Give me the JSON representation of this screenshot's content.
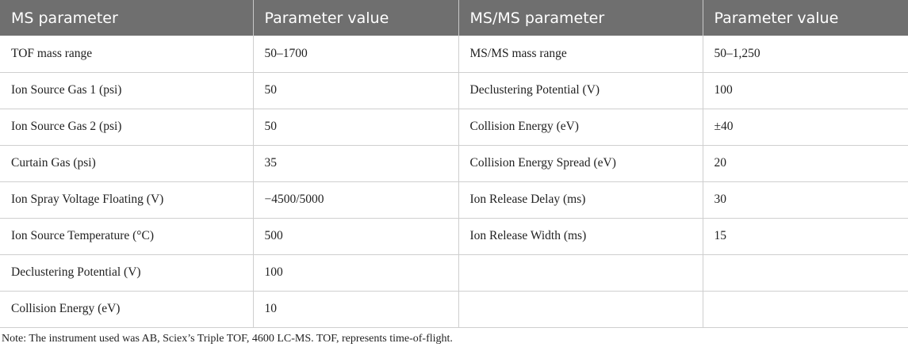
{
  "table": {
    "headers": [
      "MS parameter",
      "Parameter value",
      "MS/MS parameter",
      "Parameter value"
    ],
    "rows": [
      [
        "TOF mass range",
        "50–1700",
        "MS/MS mass range",
        "50–1,250"
      ],
      [
        "Ion Source Gas 1 (psi)",
        "50",
        "Declustering Potential (V)",
        "100"
      ],
      [
        "Ion Source Gas 2 (psi)",
        "50",
        "Collision Energy (eV)",
        "±40"
      ],
      [
        "Curtain Gas (psi)",
        "35",
        "Collision Energy Spread (eV)",
        "20"
      ],
      [
        "Ion Spray Voltage Floating (V)",
        "−4500/5000",
        "Ion Release Delay (ms)",
        "30"
      ],
      [
        "Ion Source Temperature (°C)",
        "500",
        "Ion Release Width (ms)",
        "15"
      ],
      [
        "Declustering Potential (V)",
        "100",
        "",
        ""
      ],
      [
        "Collision Energy (eV)",
        "10",
        "",
        ""
      ]
    ]
  },
  "note": "Note: The instrument used was AB, Sciex’s Triple TOF, 4600 LC-MS. TOF, represents time-of-flight."
}
